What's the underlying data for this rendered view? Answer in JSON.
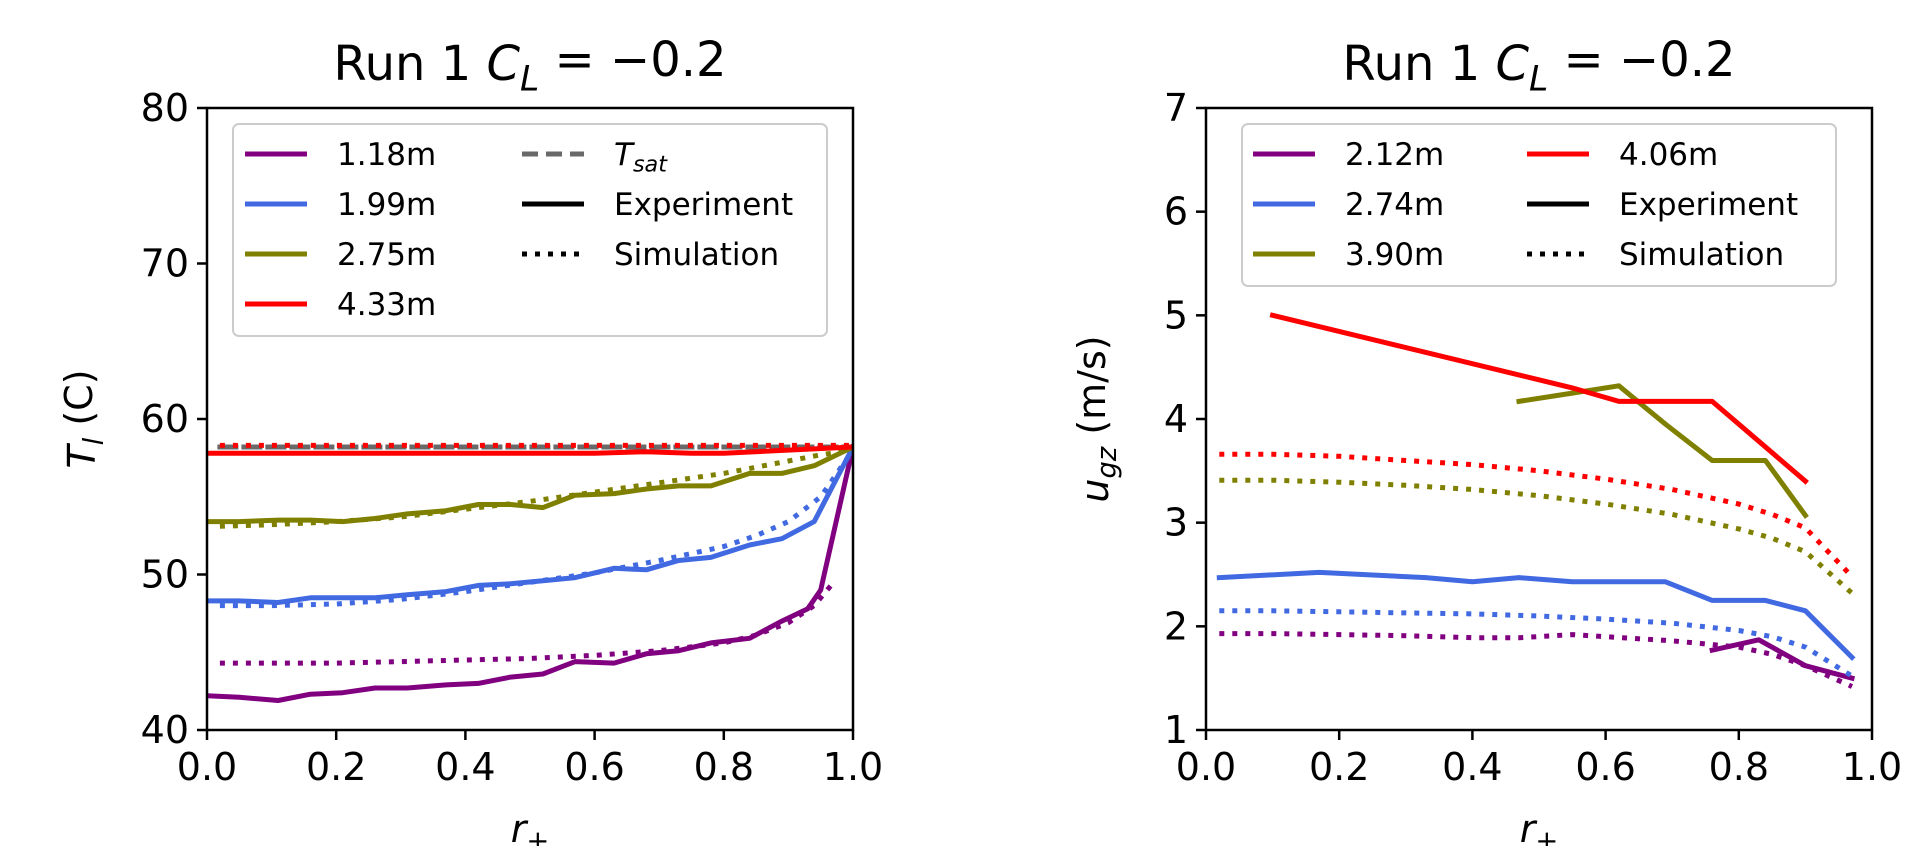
{
  "chart_data": [
    {
      "type": "line",
      "title": "Run 1 C_L = −0.2",
      "title_parts": {
        "prefix": "Run 1 ",
        "var": "C",
        "sub": "L",
        "suffix": " = −0.2"
      },
      "xlabel": "r+",
      "xlabel_parts": {
        "var": "r",
        "sub": "+"
      },
      "ylabel": "T_l (C)",
      "ylabel_parts": {
        "var": "T",
        "sub": "l",
        "suffix": " (C)"
      },
      "xlim": [
        0.0,
        1.0
      ],
      "ylim": [
        40,
        80
      ],
      "xticks": [
        "0.0",
        "0.2",
        "0.4",
        "0.6",
        "0.8",
        "1.0"
      ],
      "yticks": [
        "40",
        "50",
        "60",
        "70",
        "80"
      ],
      "grid": false,
      "legend_position": "upper",
      "legend_series": [
        {
          "label": "1.18m",
          "color": "#800080",
          "style": "solid"
        },
        {
          "label": "1.99m",
          "color": "#4169e1",
          "style": "solid"
        },
        {
          "label": "2.75m",
          "color": "#808000",
          "style": "solid"
        },
        {
          "label": "4.33m",
          "color": "#ff0000",
          "style": "solid"
        }
      ],
      "legend_styles": [
        {
          "label": "T_sat",
          "label_parts": {
            "var": "T",
            "sub": "sat"
          },
          "color": "#696969",
          "style": "dashed"
        },
        {
          "label": "Experiment",
          "color": "#000000",
          "style": "solid"
        },
        {
          "label": "Simulation",
          "color": "#000000",
          "style": "dotted"
        }
      ],
      "series": [
        {
          "name": "T_sat",
          "color": "#696969",
          "style": "dashed",
          "x": [
            0.02,
            1.0
          ],
          "y": [
            58.2,
            58.2
          ]
        },
        {
          "name": "1.18m",
          "kind": "Experiment",
          "color": "#800080",
          "style": "solid",
          "x": [
            0.0,
            0.05,
            0.11,
            0.16,
            0.21,
            0.26,
            0.31,
            0.37,
            0.42,
            0.47,
            0.52,
            0.57,
            0.63,
            0.68,
            0.73,
            0.78,
            0.84,
            0.89,
            0.93,
            0.95,
            1.0
          ],
          "y": [
            42.2,
            42.1,
            41.9,
            42.3,
            42.4,
            42.7,
            42.7,
            42.9,
            43.0,
            43.4,
            43.6,
            44.4,
            44.3,
            44.9,
            45.1,
            45.6,
            45.9,
            47.0,
            47.8,
            49.0,
            58.2
          ]
        },
        {
          "name": "1.18m",
          "kind": "Simulation",
          "color": "#800080",
          "style": "dotted",
          "x": [
            0.02,
            0.1,
            0.2,
            0.3,
            0.4,
            0.5,
            0.6,
            0.7,
            0.8,
            0.85,
            0.9,
            0.94,
            0.97
          ],
          "y": [
            44.3,
            44.3,
            44.3,
            44.4,
            44.5,
            44.6,
            44.8,
            45.1,
            45.6,
            46.1,
            46.9,
            48.0,
            49.5
          ]
        },
        {
          "name": "1.99m",
          "kind": "Experiment",
          "color": "#4169e1",
          "style": "solid",
          "x": [
            0.0,
            0.05,
            0.11,
            0.16,
            0.21,
            0.26,
            0.31,
            0.37,
            0.42,
            0.47,
            0.52,
            0.57,
            0.63,
            0.68,
            0.73,
            0.78,
            0.84,
            0.89,
            0.94,
            1.0
          ],
          "y": [
            48.3,
            48.3,
            48.2,
            48.5,
            48.5,
            48.5,
            48.7,
            48.9,
            49.3,
            49.4,
            49.6,
            49.8,
            50.4,
            50.3,
            50.9,
            51.1,
            51.9,
            52.3,
            53.4,
            58.2
          ]
        },
        {
          "name": "1.99m",
          "kind": "Simulation",
          "color": "#4169e1",
          "style": "dotted",
          "x": [
            0.02,
            0.1,
            0.2,
            0.3,
            0.4,
            0.5,
            0.6,
            0.7,
            0.8,
            0.85,
            0.9,
            0.95,
            1.0
          ],
          "y": [
            48.0,
            48.0,
            48.1,
            48.4,
            48.9,
            49.5,
            50.1,
            50.9,
            51.8,
            52.5,
            53.4,
            55.0,
            58.0
          ]
        },
        {
          "name": "2.75m",
          "kind": "Experiment",
          "color": "#808000",
          "style": "solid",
          "x": [
            0.0,
            0.05,
            0.11,
            0.16,
            0.21,
            0.26,
            0.31,
            0.37,
            0.42,
            0.47,
            0.52,
            0.57,
            0.63,
            0.68,
            0.73,
            0.78,
            0.84,
            0.89,
            0.94,
            1.0
          ],
          "y": [
            53.4,
            53.4,
            53.5,
            53.5,
            53.4,
            53.6,
            53.9,
            54.1,
            54.5,
            54.5,
            54.3,
            55.1,
            55.2,
            55.5,
            55.7,
            55.7,
            56.5,
            56.5,
            57.0,
            58.2
          ]
        },
        {
          "name": "2.75m",
          "kind": "Simulation",
          "color": "#808000",
          "style": "dotted",
          "x": [
            0.02,
            0.1,
            0.2,
            0.3,
            0.4,
            0.5,
            0.6,
            0.7,
            0.8,
            0.85,
            0.9,
            0.95,
            1.0
          ],
          "y": [
            53.1,
            53.2,
            53.4,
            53.7,
            54.2,
            54.7,
            55.3,
            55.9,
            56.5,
            56.9,
            57.3,
            57.7,
            58.0
          ]
        },
        {
          "name": "4.33m",
          "kind": "Experiment",
          "color": "#ff0000",
          "style": "solid",
          "x": [
            0.0,
            0.2,
            0.4,
            0.6,
            0.68,
            0.75,
            0.8,
            1.0
          ],
          "y": [
            57.8,
            57.8,
            57.8,
            57.8,
            57.9,
            57.8,
            57.8,
            58.2
          ]
        },
        {
          "name": "4.33m",
          "kind": "Simulation",
          "color": "#ff0000",
          "style": "dotted",
          "x": [
            0.02,
            0.2,
            0.4,
            0.6,
            0.8,
            1.0
          ],
          "y": [
            58.3,
            58.3,
            58.3,
            58.3,
            58.3,
            58.3
          ]
        }
      ]
    },
    {
      "type": "line",
      "title": "Run 1 C_L = −0.2",
      "title_parts": {
        "prefix": "Run 1 ",
        "var": "C",
        "sub": "L",
        "suffix": " = −0.2"
      },
      "xlabel": "r+",
      "xlabel_parts": {
        "var": "r",
        "sub": "+"
      },
      "ylabel": "u_gz (m/s)",
      "ylabel_parts": {
        "var": "u",
        "sub": "gz",
        "suffix": " (m/s)"
      },
      "xlim": [
        0.0,
        1.0
      ],
      "ylim": [
        1,
        7
      ],
      "xticks": [
        "0.0",
        "0.2",
        "0.4",
        "0.6",
        "0.8",
        "1.0"
      ],
      "yticks": [
        "1",
        "2",
        "3",
        "4",
        "5",
        "6",
        "7"
      ],
      "grid": false,
      "legend_position": "upper",
      "legend_series": [
        {
          "label": "2.12m",
          "color": "#800080",
          "style": "solid"
        },
        {
          "label": "2.74m",
          "color": "#4169e1",
          "style": "solid"
        },
        {
          "label": "3.90m",
          "color": "#808000",
          "style": "solid"
        }
      ],
      "legend_styles": [
        {
          "label": "4.06m",
          "color": "#ff0000",
          "style": "solid"
        },
        {
          "label": "Experiment",
          "color": "#000000",
          "style": "solid"
        },
        {
          "label": "Simulation",
          "color": "#000000",
          "style": "dotted"
        }
      ],
      "series": [
        {
          "name": "2.12m",
          "kind": "Experiment",
          "color": "#800080",
          "style": "solid",
          "x": [
            0.76,
            0.83,
            0.9,
            0.97
          ],
          "y": [
            1.77,
            1.87,
            1.62,
            1.5
          ]
        },
        {
          "name": "2.12m",
          "kind": "Simulation",
          "color": "#800080",
          "style": "dotted",
          "x": [
            0.02,
            0.1,
            0.2,
            0.3,
            0.4,
            0.47,
            0.55,
            0.6,
            0.7,
            0.8,
            0.85,
            0.9,
            0.97
          ],
          "y": [
            1.93,
            1.93,
            1.92,
            1.91,
            1.89,
            1.89,
            1.92,
            1.9,
            1.86,
            1.8,
            1.73,
            1.62,
            1.42
          ]
        },
        {
          "name": "2.74m",
          "kind": "Experiment",
          "color": "#4169e1",
          "style": "solid",
          "x": [
            0.02,
            0.17,
            0.33,
            0.4,
            0.47,
            0.55,
            0.62,
            0.69,
            0.76,
            0.84,
            0.9,
            0.97
          ],
          "y": [
            2.47,
            2.52,
            2.47,
            2.43,
            2.47,
            2.43,
            2.43,
            2.43,
            2.25,
            2.25,
            2.15,
            1.7
          ]
        },
        {
          "name": "2.74m",
          "kind": "Simulation",
          "color": "#4169e1",
          "style": "dotted",
          "x": [
            0.02,
            0.1,
            0.2,
            0.3,
            0.4,
            0.5,
            0.6,
            0.7,
            0.8,
            0.85,
            0.9,
            0.97
          ],
          "y": [
            2.15,
            2.15,
            2.14,
            2.13,
            2.12,
            2.1,
            2.07,
            2.03,
            1.96,
            1.9,
            1.8,
            1.52
          ]
        },
        {
          "name": "3.90m",
          "kind": "Experiment",
          "color": "#808000",
          "style": "solid",
          "x": [
            0.47,
            0.55,
            0.62,
            0.69,
            0.76,
            0.84,
            0.9
          ],
          "y": [
            4.17,
            4.25,
            4.32,
            3.95,
            3.6,
            3.6,
            3.07
          ]
        },
        {
          "name": "3.90m",
          "kind": "Simulation",
          "color": "#808000",
          "style": "dotted",
          "x": [
            0.02,
            0.1,
            0.2,
            0.3,
            0.4,
            0.5,
            0.6,
            0.7,
            0.8,
            0.85,
            0.9,
            0.97
          ],
          "y": [
            3.41,
            3.41,
            3.39,
            3.36,
            3.32,
            3.26,
            3.18,
            3.08,
            2.94,
            2.85,
            2.72,
            2.32
          ]
        },
        {
          "name": "4.06m",
          "kind": "Experiment",
          "color": "#ff0000",
          "style": "solid",
          "x": [
            0.1,
            0.55,
            0.62,
            0.76,
            0.9
          ],
          "y": [
            5.0,
            4.3,
            4.17,
            4.17,
            3.4
          ]
        },
        {
          "name": "4.06m",
          "kind": "Simulation",
          "color": "#ff0000",
          "style": "dotted",
          "x": [
            0.02,
            0.1,
            0.2,
            0.3,
            0.4,
            0.5,
            0.6,
            0.7,
            0.8,
            0.85,
            0.9,
            0.97
          ],
          "y": [
            3.66,
            3.66,
            3.64,
            3.6,
            3.56,
            3.5,
            3.42,
            3.32,
            3.18,
            3.08,
            2.95,
            2.48
          ]
        }
      ]
    }
  ]
}
